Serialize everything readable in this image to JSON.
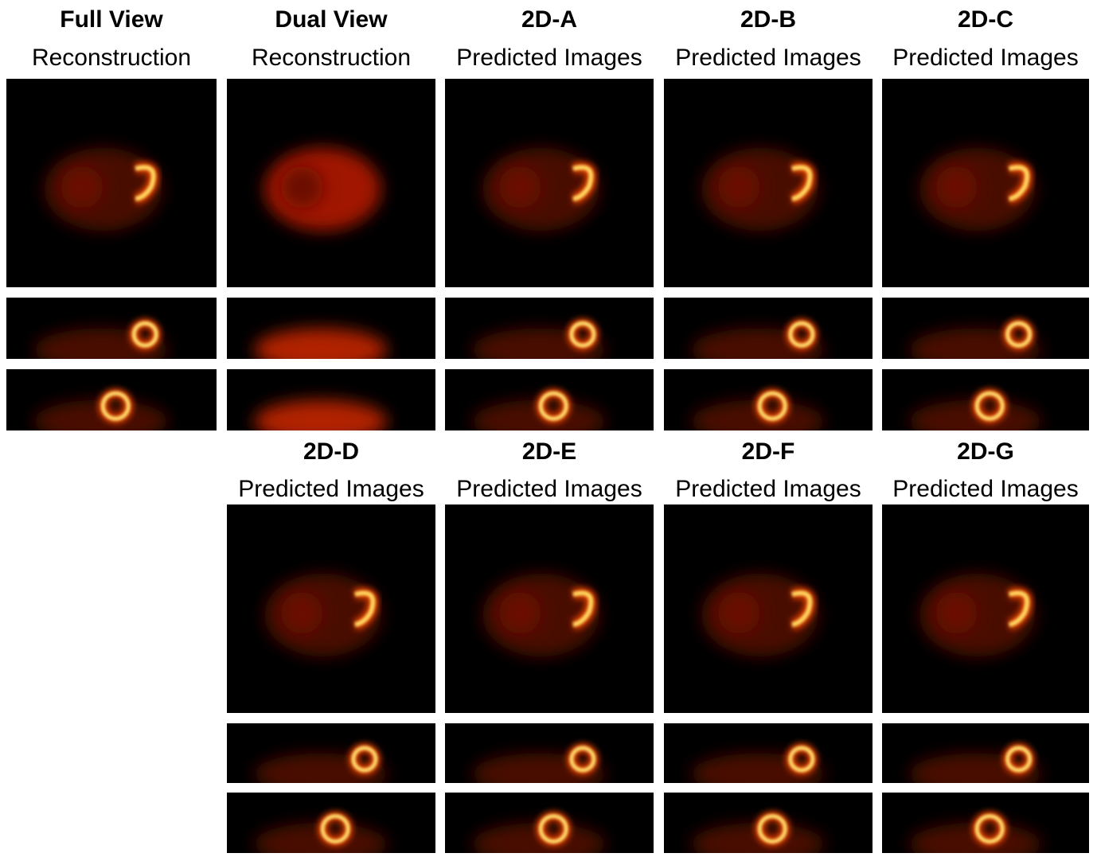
{
  "panels": [
    {
      "title": "Full View",
      "subtitle": "Reconstruction"
    },
    {
      "title": "Dual View",
      "subtitle": "Reconstruction"
    },
    {
      "title": "2D-A",
      "subtitle": "Predicted Images"
    },
    {
      "title": "2D-B",
      "subtitle": "Predicted Images"
    },
    {
      "title": "2D-C",
      "subtitle": "Predicted Images"
    },
    {
      "title": "2D-D",
      "subtitle": "Predicted Images"
    },
    {
      "title": "2D-E",
      "subtitle": "Predicted Images"
    },
    {
      "title": "2D-F",
      "subtitle": "Predicted Images"
    },
    {
      "title": "2D-G",
      "subtitle": "Predicted Images"
    }
  ]
}
